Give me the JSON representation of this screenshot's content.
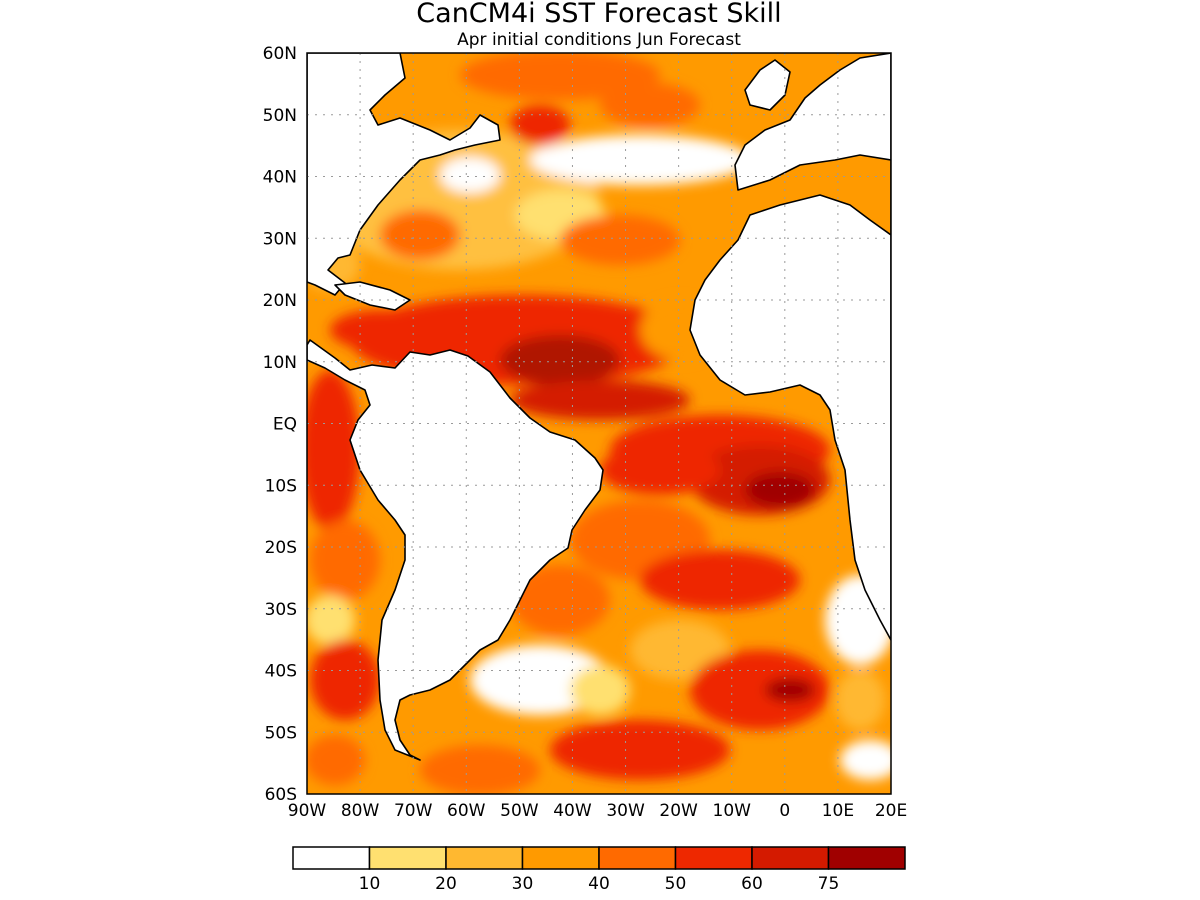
{
  "title": "CanCM4i SST Forecast Skill",
  "subtitle": "Apr initial conditions  Jun Forecast",
  "map": {
    "lon_range": [
      -90,
      20
    ],
    "lat_range": [
      -60,
      60
    ],
    "lat_ticks": [
      {
        "value": 60,
        "label": "60N"
      },
      {
        "value": 50,
        "label": "50N"
      },
      {
        "value": 40,
        "label": "40N"
      },
      {
        "value": 30,
        "label": "30N"
      },
      {
        "value": 20,
        "label": "20N"
      },
      {
        "value": 10,
        "label": "10N"
      },
      {
        "value": 0,
        "label": "EQ"
      },
      {
        "value": -10,
        "label": "10S"
      },
      {
        "value": -20,
        "label": "20S"
      },
      {
        "value": -30,
        "label": "30S"
      },
      {
        "value": -40,
        "label": "40S"
      },
      {
        "value": -50,
        "label": "50S"
      },
      {
        "value": -60,
        "label": "60S"
      }
    ],
    "lon_ticks": [
      {
        "value": -90,
        "label": "90W"
      },
      {
        "value": -80,
        "label": "80W"
      },
      {
        "value": -70,
        "label": "70W"
      },
      {
        "value": -60,
        "label": "60W"
      },
      {
        "value": -50,
        "label": "50W"
      },
      {
        "value": -40,
        "label": "40W"
      },
      {
        "value": -30,
        "label": "30W"
      },
      {
        "value": -20,
        "label": "20W"
      },
      {
        "value": -10,
        "label": "10W"
      },
      {
        "value": 0,
        "label": "0"
      },
      {
        "value": 10,
        "label": "10E"
      },
      {
        "value": 20,
        "label": "20E"
      }
    ],
    "grid": true
  },
  "colorbar": {
    "colors": [
      "#ffffff",
      "#ffe070",
      "#ffb830",
      "#ff9a00",
      "#ff6a00",
      "#ee2800",
      "#d41a00",
      "#a00000"
    ],
    "labels": [
      "10",
      "20",
      "30",
      "40",
      "50",
      "60",
      "75"
    ]
  }
}
